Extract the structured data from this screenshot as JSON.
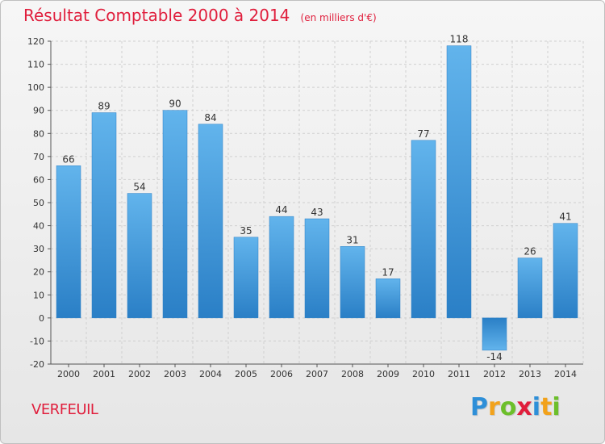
{
  "header": {
    "title": "Résultat Comptable 2000 à 2014",
    "subtitle": "(en milliers d'€)"
  },
  "footer": {
    "town": "VERFEUIL"
  },
  "logo": {
    "letters": [
      "P",
      "r",
      "o",
      "x",
      "i",
      "t",
      "i"
    ],
    "colors": [
      "#2e8fd8",
      "#f2a21b",
      "#6cbf2a",
      "#e01e3c",
      "#2e8fd8",
      "#f2a21b",
      "#6cbf2a"
    ]
  },
  "chart_data": {
    "type": "bar",
    "title": "Résultat Comptable 2000 à 2014",
    "subtitle": "(en milliers d'€)",
    "categories": [
      "2000",
      "2001",
      "2002",
      "2003",
      "2004",
      "2005",
      "2006",
      "2007",
      "2008",
      "2009",
      "2010",
      "2011",
      "2012",
      "2013",
      "2014"
    ],
    "values": [
      66,
      89,
      54,
      90,
      84,
      35,
      44,
      43,
      31,
      17,
      77,
      118,
      -14,
      26,
      41
    ],
    "ylim": [
      -20,
      120
    ],
    "yticks": [
      -20,
      -10,
      0,
      10,
      20,
      30,
      40,
      50,
      60,
      70,
      80,
      90,
      100,
      110,
      120
    ],
    "grid": true,
    "bar_color_light": "#62b4ec",
    "bar_color_dark": "#2a7fc6",
    "axis_color": "#555555",
    "grid_color": "#d0d0d0"
  }
}
